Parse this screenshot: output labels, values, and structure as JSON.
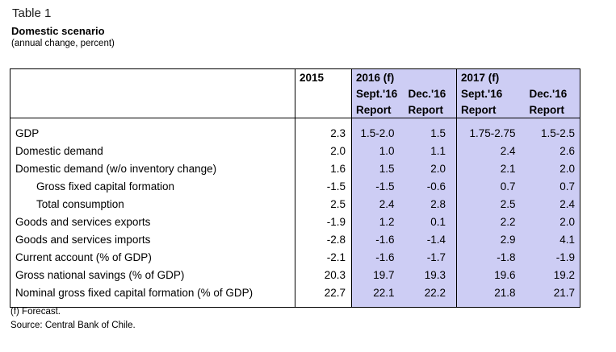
{
  "page": {
    "title": "Table 1",
    "subtitle": "Domestic scenario",
    "unit_note": "(annual change, percent)"
  },
  "table": {
    "header": {
      "col_2015": "2015",
      "group_2016": "2016 (f)",
      "group_2017": "2017 (f)",
      "sub_sept16": "Sept.'16",
      "sub_dec16": "Dec.'16",
      "sub_report": "Report"
    },
    "rows": [
      {
        "label": "GDP",
        "indent": false,
        "v2015": "2.3",
        "s16": "1.5-2.0",
        "d16": "1.5",
        "s17": "1.75-2.75",
        "d17": "1.5-2.5"
      },
      {
        "label": "Domestic demand",
        "indent": false,
        "v2015": "2.0",
        "s16": "1.0",
        "d16": "1.1",
        "s17": "2.4",
        "d17": "2.6"
      },
      {
        "label": "Domestic demand (w/o inventory change)",
        "indent": false,
        "v2015": "1.6",
        "s16": "1.5",
        "d16": "2.0",
        "s17": "2.1",
        "d17": "2.0"
      },
      {
        "label": "Gross fixed capital formation",
        "indent": true,
        "v2015": "-1.5",
        "s16": "-1.5",
        "d16": "-0.6",
        "s17": "0.7",
        "d17": "0.7"
      },
      {
        "label": "Total consumption",
        "indent": true,
        "v2015": "2.5",
        "s16": "2.4",
        "d16": "2.8",
        "s17": "2.5",
        "d17": "2.4"
      },
      {
        "label": "Goods and services exports",
        "indent": false,
        "v2015": "-1.9",
        "s16": "1.2",
        "d16": "0.1",
        "s17": "2.2",
        "d17": "2.0"
      },
      {
        "label": "Goods and services imports",
        "indent": false,
        "v2015": "-2.8",
        "s16": "-1.6",
        "d16": "-1.4",
        "s17": "2.9",
        "d17": "4.1"
      },
      {
        "label": "Current account (% of GDP)",
        "indent": false,
        "v2015": "-2.1",
        "s16": "-1.6",
        "d16": "-1.7",
        "s17": "-1.8",
        "d17": "-1.9"
      },
      {
        "label": "Gross national savings (% of GDP)",
        "indent": false,
        "v2015": "20.3",
        "s16": "19.7",
        "d16": "19.3",
        "s17": "19.6",
        "d17": "19.2"
      },
      {
        "label": "Nominal gross fixed capital formation (% of GDP)",
        "indent": false,
        "v2015": "22.7",
        "s16": "22.1",
        "d16": "22.2",
        "s17": "21.8",
        "d17": "21.7"
      }
    ]
  },
  "footnotes": {
    "forecast": "(f) Forecast.",
    "source": "Source: Central Bank of Chile."
  },
  "colors": {
    "highlight": "#cdcdf4",
    "border": "#000000",
    "background": "#ffffff"
  }
}
